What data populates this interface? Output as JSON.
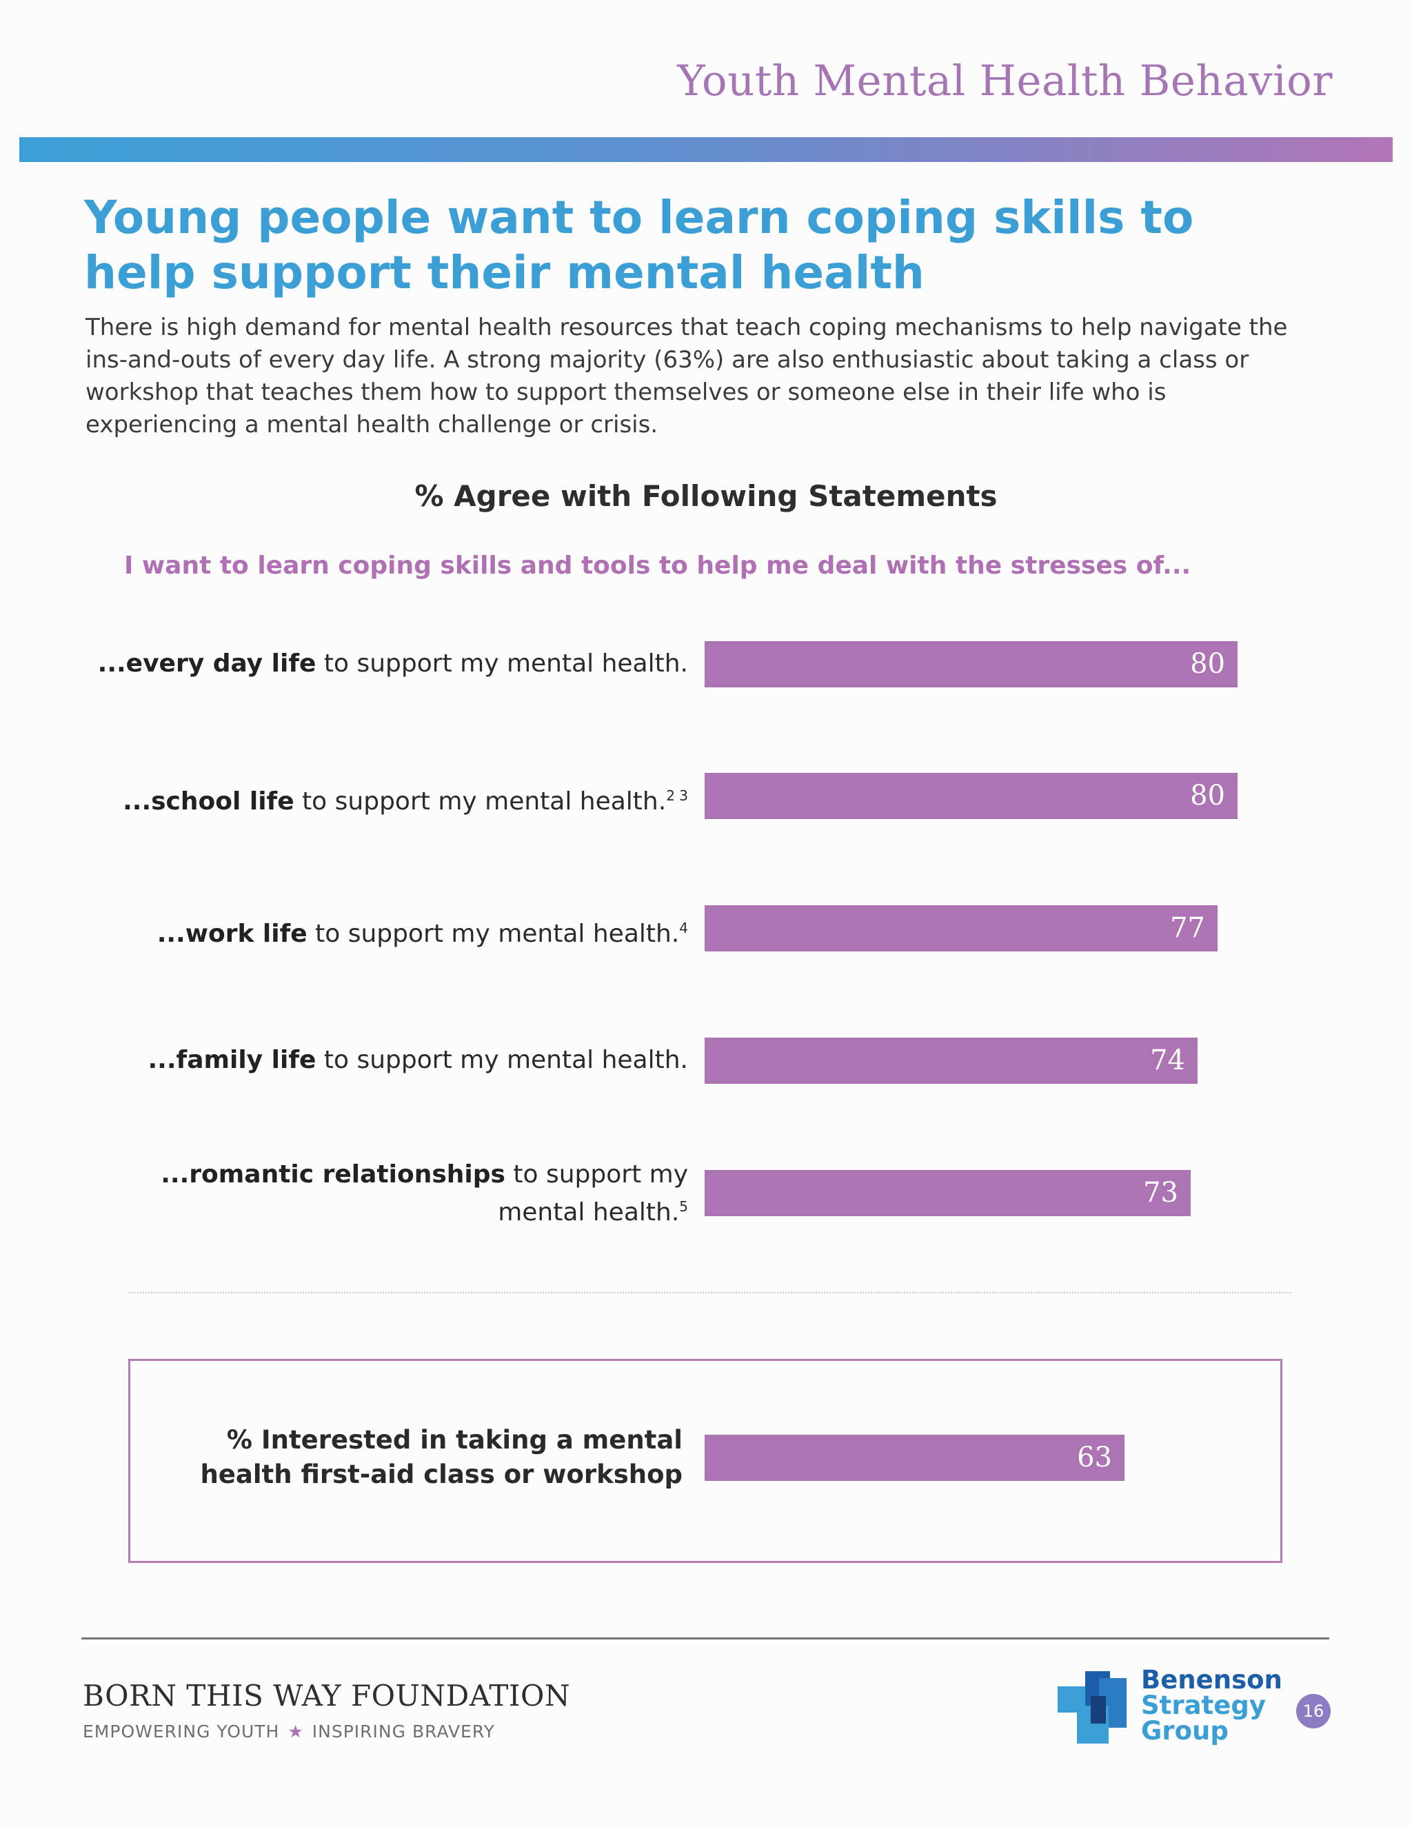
{
  "header": {
    "title": "Youth Mental Health Behavior"
  },
  "main": {
    "title": "Young people want to learn coping skills to help support their mental health",
    "intro": "There is high demand for mental health resources that teach coping mechanisms to help navigate the ins-and-outs of every day life. A strong majority (63%) are also enthusiastic about taking a class or workshop that teaches them how to support themselves or someone else in their life who is experiencing a mental health challenge or crisis."
  },
  "chart_data": {
    "type": "bar",
    "orientation": "horizontal",
    "title": "% Agree with Following Statements",
    "subtitle": "I want to learn coping skills and tools to help me deal with the stresses of...",
    "bar_color": "#ac74b2",
    "categories": [
      {
        "bold": "...every day life",
        "rest": " to support my mental health.",
        "sup": ""
      },
      {
        "bold": "...school life",
        "rest": " to support my mental health.",
        "sup": "2 3"
      },
      {
        "bold": "...work life",
        "rest": " to support my mental health.",
        "sup": "4"
      },
      {
        "bold": "...family life",
        "rest": " to support my mental health.",
        "sup": ""
      },
      {
        "bold": "...romantic relationships",
        "rest": " to support my mental health.",
        "sup": "5"
      }
    ],
    "values": [
      80,
      80,
      77,
      74,
      73
    ],
    "xlim": [
      0,
      100
    ],
    "callout": {
      "label": "% Interested in taking a mental health first-aid class or workshop",
      "value": 63
    }
  },
  "footer": {
    "organization": "BORN THIS WAY FOUNDATION",
    "tagline_left": "EMPOWERING YOUTH",
    "tagline_star": "★",
    "tagline_right": "INSPIRING BRAVERY",
    "logo_line1": "Benenson",
    "logo_line2": "Strategy",
    "logo_line3": "Group",
    "page_number": "16"
  }
}
